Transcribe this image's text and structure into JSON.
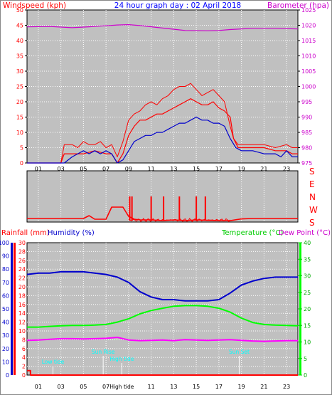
{
  "header": {
    "left": "Windspeed (kph)",
    "center": "24 hour graph day : 02 April 2018",
    "right": "Barometer (hpa)"
  },
  "labels": {
    "rainfall": "Rainfall (mm)",
    "humidity": "Humidity (%)",
    "temperature": "Temperature (°C)",
    "dewpoint": "Dew Point (°C)"
  },
  "colors": {
    "plot_bg": "#c0c0c0",
    "wind": "#ff0000",
    "gust": "#ff0000",
    "avgwind": "#0000cc",
    "baro": "#cc00cc",
    "humidity": "#0000cc",
    "temperature": "#00ff00",
    "dewpoint": "#ff00ff",
    "rain": "#ff0000",
    "marker": "#00ffff"
  },
  "chart_data": [
    {
      "type": "line",
      "x_ticks": [
        "01",
        "03",
        "05",
        "07",
        "09",
        "11",
        "13",
        "15",
        "17",
        "19",
        "21",
        "23"
      ],
      "left_axis": {
        "min": 0,
        "max": 50,
        "ticks": [
          0,
          5,
          10,
          15,
          20,
          25,
          30,
          35,
          40,
          45,
          50
        ]
      },
      "right_axis": {
        "min": 975,
        "max": 1025,
        "ticks": [
          975,
          980,
          985,
          990,
          995,
          1000,
          1005,
          1010,
          1015,
          1020,
          1025
        ]
      },
      "series": [
        {
          "key": "gust",
          "axis": "left",
          "x": [
            0,
            3.0,
            3.3,
            4,
            4.5,
            5,
            5.5,
            6,
            6.5,
            7,
            7.5,
            8,
            8.5,
            9,
            9.5,
            10,
            10.5,
            11,
            11.5,
            12,
            12.5,
            13,
            13.5,
            14,
            14.5,
            15,
            15.5,
            16,
            16.5,
            17,
            17.5,
            18,
            18.3,
            18.7,
            19,
            20,
            21,
            22,
            23,
            23.5,
            24
          ],
          "values": [
            0,
            0,
            6,
            6,
            5,
            7,
            6,
            6,
            7,
            5,
            6,
            2,
            7,
            14,
            16,
            17,
            19,
            20,
            19,
            21,
            22,
            24,
            25,
            25,
            26,
            24,
            22,
            23,
            24,
            22,
            20,
            12,
            8,
            6,
            6,
            6,
            6,
            5,
            6,
            5,
            5
          ]
        },
        {
          "key": "wind",
          "axis": "left",
          "x": [
            0,
            3.0,
            3.3,
            4,
            5,
            6,
            7,
            7.5,
            8,
            8.5,
            9,
            9.5,
            10,
            10.5,
            11,
            11.5,
            12,
            12.5,
            13,
            13.5,
            14,
            14.5,
            15,
            15.5,
            16,
            16.5,
            17,
            17.5,
            18,
            18.3,
            18.7,
            19,
            20,
            21,
            22,
            23,
            23.5,
            24
          ],
          "values": [
            0,
            0,
            3,
            3,
            3,
            4,
            3,
            3,
            0,
            3,
            9,
            12,
            14,
            14,
            15,
            16,
            16,
            17,
            18,
            19,
            20,
            21,
            20,
            19,
            19,
            20,
            18,
            17,
            15,
            8,
            5,
            5,
            5,
            5,
            4,
            4,
            3,
            3
          ]
        },
        {
          "key": "avgwind",
          "axis": "left",
          "x": [
            0,
            3.3,
            4,
            4.5,
            5,
            5.5,
            6,
            6.5,
            7,
            7.5,
            8,
            8.5,
            9,
            9.5,
            10,
            10.5,
            11,
            11.5,
            12,
            12.5,
            13,
            13.5,
            14,
            14.5,
            15,
            15.5,
            16,
            16.5,
            17,
            17.5,
            18,
            18.5,
            19,
            20,
            21,
            22,
            22.5,
            23,
            23.5,
            24
          ],
          "values": [
            0,
            0,
            2,
            3,
            4,
            3,
            4,
            3,
            4,
            3,
            0,
            1,
            4,
            7,
            8,
            9,
            9,
            10,
            10,
            11,
            12,
            13,
            13,
            14,
            15,
            14,
            14,
            13,
            13,
            12,
            8,
            5,
            4,
            4,
            3,
            3,
            2,
            4,
            2,
            2
          ]
        },
        {
          "key": "baro",
          "axis": "right",
          "x": [
            0,
            2,
            4,
            6,
            8,
            9,
            10,
            12,
            14,
            16,
            17,
            18,
            20,
            22,
            24
          ],
          "values": [
            1019.5,
            1019.6,
            1019.2,
            1019.6,
            1020.1,
            1020.2,
            1019.9,
            1019.1,
            1018.3,
            1018.2,
            1018.3,
            1018.6,
            1019.0,
            1019.0,
            1018.8
          ]
        }
      ]
    },
    {
      "type": "line",
      "direction_labels": [
        "S",
        "E",
        "N",
        "W",
        "S"
      ],
      "direction_range": [
        0,
        360
      ],
      "series": [
        {
          "key": "direction",
          "x": [
            0,
            1,
            2,
            3,
            4,
            5,
            5.5,
            6,
            6.5,
            7,
            7.5,
            8,
            8.5,
            9,
            9.5,
            10,
            11,
            12,
            13,
            14,
            15,
            16,
            17,
            18,
            19,
            20,
            21,
            22,
            23,
            24
          ],
          "values": [
            335,
            335,
            335,
            335,
            335,
            335,
            315,
            340,
            340,
            340,
            255,
            255,
            255,
            320,
            340,
            345,
            345,
            350,
            345,
            350,
            345,
            348,
            350,
            350,
            338,
            335,
            335,
            335,
            335,
            335
          ]
        },
        {
          "key": "direction_spikes",
          "x": [
            9.1,
            9.3,
            11.0,
            12.1,
            13.5,
            15.0,
            15.8
          ],
          "values": [
            180,
            180,
            180,
            180,
            180,
            180,
            180
          ]
        }
      ]
    },
    {
      "type": "line",
      "x_ticks": [
        "01",
        "03",
        "05",
        "07",
        "",
        "11",
        "13",
        "15",
        "17",
        "19",
        "21",
        "23"
      ],
      "rain_axis": {
        "min": 0,
        "max": 30,
        "ticks": [
          0,
          2,
          4,
          6,
          8,
          10,
          12,
          14,
          16,
          18,
          20,
          22,
          24,
          26,
          28,
          30
        ]
      },
      "humidity_axis": {
        "min": 0,
        "max": 100,
        "ticks": [
          0,
          10,
          20,
          30,
          40,
          50,
          60,
          70,
          80,
          90,
          100
        ]
      },
      "temp_axis": {
        "min": 0,
        "max": 40,
        "ticks": [
          0,
          5,
          10,
          15,
          20,
          25,
          30,
          35,
          40
        ]
      },
      "series": [
        {
          "key": "humidity",
          "axis": "humidity",
          "x": [
            0,
            1,
            2,
            3,
            4,
            5,
            6,
            7,
            8,
            9,
            10,
            11,
            12,
            13,
            14,
            15,
            16,
            17,
            18,
            19,
            20,
            21,
            22,
            23,
            24
          ],
          "values": [
            76,
            77,
            77,
            78,
            78,
            78,
            77,
            76,
            74,
            70,
            63,
            59,
            57,
            57,
            56,
            56,
            56,
            57,
            62,
            68,
            71,
            73,
            74,
            74,
            74
          ]
        },
        {
          "key": "temperature",
          "axis": "temp",
          "x": [
            0,
            1,
            2,
            3,
            4,
            5,
            6,
            7,
            8,
            9,
            10,
            11,
            12,
            13,
            14,
            15,
            16,
            17,
            18,
            19,
            20,
            21,
            22,
            23,
            24
          ],
          "values": [
            14.5,
            14.5,
            14.7,
            14.9,
            15.0,
            15.0,
            15.1,
            15.3,
            16.0,
            17.0,
            18.5,
            19.5,
            20.2,
            20.8,
            21.0,
            21.0,
            20.8,
            20.2,
            19.0,
            17.2,
            15.9,
            15.3,
            15.1,
            15.0,
            14.9
          ]
        },
        {
          "key": "dewpoint",
          "axis": "temp",
          "x": [
            0,
            1,
            2,
            3,
            4,
            5,
            6,
            7,
            8,
            9,
            10,
            11,
            12,
            13,
            14,
            15,
            16,
            17,
            18,
            19,
            20,
            21,
            22,
            23,
            24
          ],
          "values": [
            10.5,
            10.6,
            10.8,
            11.0,
            11.0,
            10.9,
            11.0,
            11.1,
            11.4,
            10.6,
            10.4,
            10.5,
            10.6,
            10.4,
            10.7,
            10.6,
            10.5,
            10.6,
            10.7,
            10.5,
            10.3,
            10.2,
            10.3,
            10.4,
            10.4
          ]
        },
        {
          "key": "rain",
          "axis": "rain",
          "x": [
            0,
            0.01,
            0.3,
            0.31,
            24
          ],
          "values": [
            1,
            1,
            1,
            0,
            0
          ]
        }
      ],
      "markers": [
        {
          "label": "Low tide",
          "x": 2.3
        },
        {
          "label": "Sun Rise",
          "x": 6.75
        },
        {
          "label": "High tide",
          "x": 8.4
        },
        {
          "label": "Sun Set",
          "x": 18.8
        }
      ]
    }
  ]
}
